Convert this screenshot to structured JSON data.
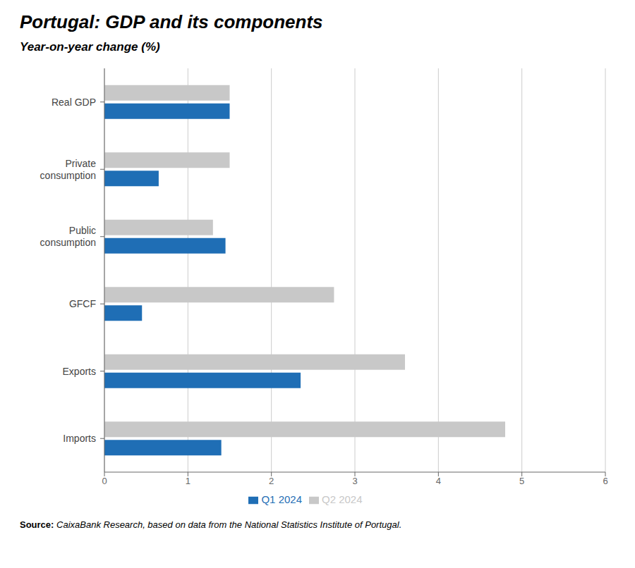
{
  "chart_data": {
    "type": "bar",
    "orientation": "horizontal",
    "title": "Portugal: GDP and its components",
    "subtitle": "Year-on-year change (%)",
    "annotations": [
      "Source:",
      "CaixaBank Research, based on data from the National Statistics Institute of Portugal."
    ],
    "categories": [
      "Real GDP",
      "Private\nconsumption",
      "Public\nconsumption",
      "GFCF",
      "Exports",
      "Imports"
    ],
    "series": [
      {
        "name": "Q2 2024",
        "color": "#c8c8c8",
        "values": [
          1.5,
          1.5,
          1.3,
          2.75,
          3.6,
          4.8
        ]
      },
      {
        "name": "Q1 2024",
        "color": "#1f6eb5",
        "values": [
          1.5,
          0.65,
          1.45,
          0.45,
          2.35,
          1.4
        ]
      }
    ],
    "xlim": [
      0,
      6
    ],
    "xticks": [
      0,
      1,
      2,
      3,
      4,
      5,
      6
    ],
    "grid": true,
    "legend": "bottom"
  }
}
